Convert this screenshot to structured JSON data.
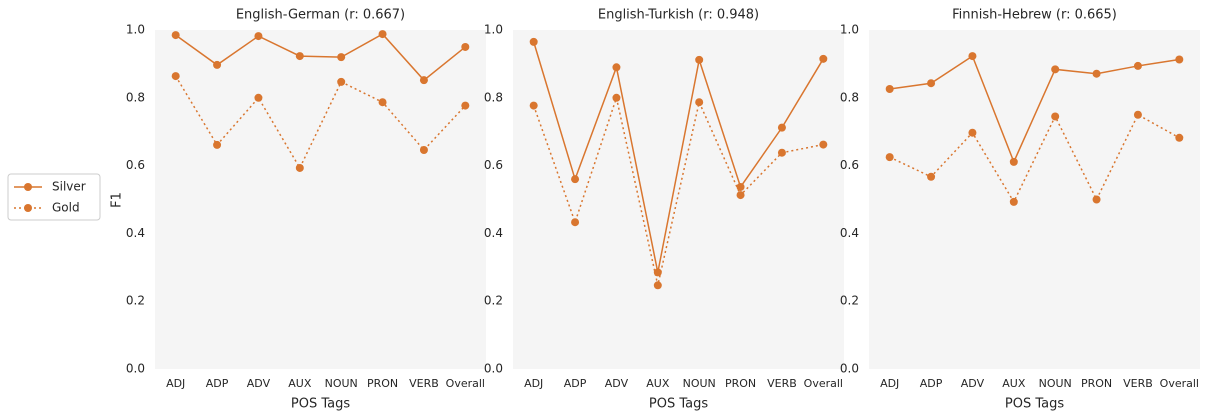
{
  "chart_data": [
    {
      "type": "line",
      "title": "English-German (r: 0.667)",
      "xlabel": "POS Tags",
      "ylabel": "F1",
      "legend": "outside left",
      "categories": [
        "ADJ",
        "ADP",
        "ADV",
        "AUX",
        "NOUN",
        "PRON",
        "VERB",
        "Overall"
      ],
      "series": [
        {
          "name": "Silver",
          "color": "#d9762f",
          "linestyle": "solid",
          "values": [
            0.985,
            0.897,
            0.982,
            0.923,
            0.92,
            0.988,
            0.852,
            0.95
          ]
        },
        {
          "name": "Gold",
          "color": "#d9762f",
          "linestyle": "dotted",
          "values": [
            0.864,
            0.661,
            0.8,
            0.593,
            0.847,
            0.787,
            0.646,
            0.777
          ]
        }
      ],
      "ylim": [
        0,
        1
      ],
      "yticks": [
        {
          "value": 0,
          "label": "0.0"
        },
        0.2,
        0.4,
        0.6,
        0.8,
        {
          "value": 1,
          "label": "1.0"
        }
      ]
    },
    {
      "type": "line",
      "title": "English-Turkish (r: 0.948)",
      "xlabel": "POS Tags",
      "categories": [
        "ADJ",
        "ADP",
        "ADV",
        "AUX",
        "NOUN",
        "PRON",
        "VERB",
        "Overall"
      ],
      "series": [
        {
          "name": "Silver",
          "color": "#d9762f",
          "linestyle": "solid",
          "values": [
            0.965,
            0.56,
            0.89,
            0.285,
            0.912,
            0.537,
            0.712,
            0.915
          ]
        },
        {
          "name": "Gold",
          "color": "#d9762f",
          "linestyle": "dotted",
          "values": [
            0.777,
            0.433,
            0.8,
            0.247,
            0.787,
            0.513,
            0.638,
            0.662
          ]
        }
      ],
      "ylim": [
        0,
        1
      ],
      "yticks": [
        {
          "value": 0,
          "label": "0.0"
        },
        0.2,
        0.4,
        0.6,
        0.8,
        {
          "value": 1,
          "label": "1.0"
        }
      ]
    },
    {
      "type": "line",
      "title": "Finnish-Hebrew (r: 0.665)",
      "xlabel": "POS Tags",
      "categories": [
        "ADJ",
        "ADP",
        "ADV",
        "AUX",
        "NOUN",
        "PRON",
        "VERB",
        "Overall"
      ],
      "series": [
        {
          "name": "Silver",
          "color": "#d9762f",
          "linestyle": "solid",
          "values": [
            0.826,
            0.843,
            0.923,
            0.611,
            0.884,
            0.871,
            0.894,
            0.913
          ]
        },
        {
          "name": "Gold",
          "color": "#d9762f",
          "linestyle": "dotted",
          "values": [
            0.625,
            0.567,
            0.697,
            0.493,
            0.745,
            0.5,
            0.75,
            0.682
          ]
        }
      ],
      "ylim": [
        0,
        1
      ],
      "yticks": [
        {
          "value": 0,
          "label": "0.0"
        },
        0.2,
        0.4,
        0.6,
        0.8,
        {
          "value": 1,
          "label": "1.0"
        }
      ]
    }
  ]
}
